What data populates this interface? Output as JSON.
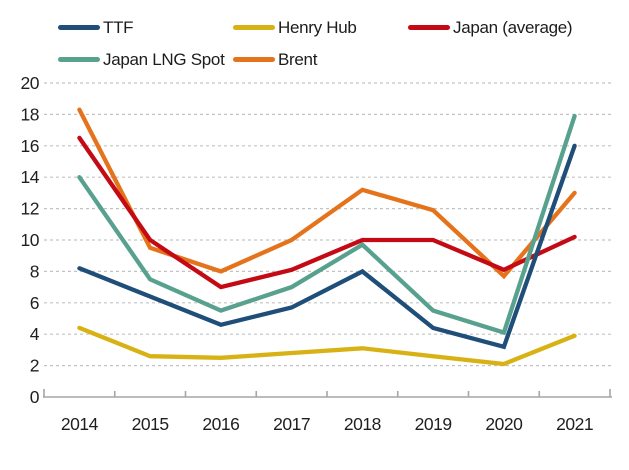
{
  "chart_data": {
    "type": "line",
    "title": "",
    "categories": [
      "2014",
      "2015",
      "2016",
      "2017",
      "2018",
      "2019",
      "2020",
      "2021"
    ],
    "series": [
      {
        "name": "TTF",
        "color": "#1f4e79",
        "values": [
          8.2,
          6.4,
          4.6,
          5.7,
          8.0,
          4.4,
          3.2,
          16.0
        ]
      },
      {
        "name": "Henry Hub",
        "color": "#d8b214",
        "values": [
          4.4,
          2.6,
          2.5,
          2.8,
          3.1,
          2.6,
          2.1,
          3.9
        ]
      },
      {
        "name": "Japan (average)",
        "color": "#c40a15",
        "values": [
          16.5,
          10.0,
          7.0,
          8.1,
          10.0,
          10.0,
          8.1,
          10.2
        ]
      },
      {
        "name": "Japan LNG Spot",
        "color": "#58a18e",
        "values": [
          14.0,
          7.5,
          5.5,
          7.0,
          9.7,
          5.5,
          4.1,
          17.9
        ]
      },
      {
        "name": "Brent",
        "color": "#e5731c",
        "values": [
          18.3,
          9.5,
          8.0,
          10.0,
          13.2,
          11.9,
          7.7,
          13.0
        ]
      }
    ],
    "xlabel": "",
    "ylabel": "",
    "ylim": [
      0,
      20
    ],
    "yticks": [
      0,
      2,
      4,
      6,
      8,
      10,
      12,
      14,
      16,
      18,
      20
    ],
    "grid": "horizontal-dashed",
    "legend_position": "top-left",
    "legend_rows": [
      [
        "TTF",
        "Henry Hub",
        "Japan (average)"
      ],
      [
        "Japan LNG Spot",
        "Brent"
      ]
    ],
    "draw_order": [
      "Brent",
      "Henry Hub",
      "Japan (average)",
      "Japan LNG Spot",
      "TTF"
    ]
  },
  "colors": {
    "background": "#ffffff",
    "axis": "#a6a6a6",
    "gridline": "#c3c3c3",
    "text": "#1f1f1f"
  }
}
